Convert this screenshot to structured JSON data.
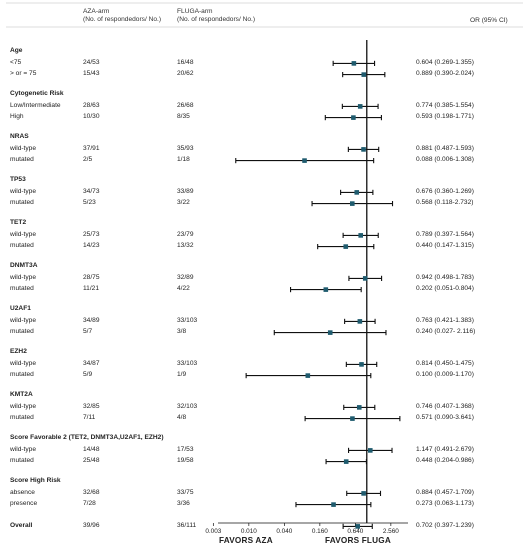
{
  "header": {
    "aza_line1": "AZA-arm",
    "aza_line2": "(No. of respondedors/ No.)",
    "fluga_line1": "FLUGA-arm",
    "fluga_line2": "(No. of respondedors/ No.)",
    "or_label": "OR (95% CI)"
  },
  "chart_data": {
    "type": "forest",
    "x_scale": "log2",
    "xlim": [
      0.003,
      5
    ],
    "reference_line": 1,
    "x_ticks": [
      "0.003",
      "0.010",
      "0.040",
      "0.160",
      "0.640",
      "2.560"
    ],
    "x_tick_values": [
      0.0025,
      0.01,
      0.04,
      0.16,
      0.64,
      2.56
    ],
    "favors_left": "FAVORS AZA",
    "favors_right": "FAVORS FLUGA",
    "groups": [
      {
        "title": "Age",
        "rows": [
          {
            "label": "<75",
            "aza": "24/53",
            "fluga": "16/48",
            "or_text": "0.604 (0.269-1.355)",
            "or": 0.604,
            "lo": 0.269,
            "hi": 1.355
          },
          {
            "label": "> or = 75",
            "aza": "15/43",
            "fluga": "20/62",
            "or_text": "0.889 (0.390-2.024)",
            "or": 0.889,
            "lo": 0.39,
            "hi": 2.024
          }
        ]
      },
      {
        "title": "Cytogenetic Risk",
        "rows": [
          {
            "label": "Low/Intermediate",
            "aza": "28/63",
            "fluga": "26/68",
            "or_text": "0.774 (0.385-1.554)",
            "or": 0.774,
            "lo": 0.385,
            "hi": 1.554
          },
          {
            "label": "High",
            "aza": "10/30",
            "fluga": "8/35",
            "or_text": "0.593 (0.198-1.771)",
            "or": 0.593,
            "lo": 0.198,
            "hi": 1.771
          }
        ]
      },
      {
        "title": "NRAS",
        "rows": [
          {
            "label": "wild-type",
            "aza": "37/91",
            "fluga": "35/93",
            "or_text": "0.881 (0.487-1.593)",
            "or": 0.881,
            "lo": 0.487,
            "hi": 1.593
          },
          {
            "label": "mutated",
            "aza": "2/5",
            "fluga": "1/18",
            "or_text": "0.088 (0.006-1.308)",
            "or": 0.088,
            "lo": 0.006,
            "hi": 1.308
          }
        ]
      },
      {
        "title": "TP53",
        "rows": [
          {
            "label": "wild-type",
            "aza": "34/73",
            "fluga": "33/89",
            "or_text": "0.676 (0.360-1.269)",
            "or": 0.676,
            "lo": 0.36,
            "hi": 1.269
          },
          {
            "label": "mutated",
            "aza": "5/23",
            "fluga": "3/22",
            "or_text": "0.568 (0.118-2.732)",
            "or": 0.568,
            "lo": 0.118,
            "hi": 2.732
          }
        ]
      },
      {
        "title": "TET2",
        "rows": [
          {
            "label": "wild-type",
            "aza": "25/73",
            "fluga": "23/79",
            "or_text": "0.789 (0.397-1.564)",
            "or": 0.789,
            "lo": 0.397,
            "hi": 1.564
          },
          {
            "label": "mutated",
            "aza": "14/23",
            "fluga": "13/32",
            "or_text": "0.440 (0.147-1.315)",
            "or": 0.44,
            "lo": 0.147,
            "hi": 1.315
          }
        ]
      },
      {
        "title": "DNMT3A",
        "rows": [
          {
            "label": "wild-type",
            "aza": "28/75",
            "fluga": "32/89",
            "or_text": "0.942 (0.498-1.783)",
            "or": 0.942,
            "lo": 0.498,
            "hi": 1.783
          },
          {
            "label": "mutated",
            "aza": "11/21",
            "fluga": "4/22",
            "or_text": "0.202 (0.051-0.804)",
            "or": 0.202,
            "lo": 0.051,
            "hi": 0.804
          }
        ]
      },
      {
        "title": "U2AF1",
        "rows": [
          {
            "label": "wild-type",
            "aza": "34/89",
            "fluga": "33/103",
            "or_text": "0.763 (0.421-1.383)",
            "or": 0.763,
            "lo": 0.421,
            "hi": 1.383
          },
          {
            "label": "mutated",
            "aza": "5/7",
            "fluga": "3/8",
            "or_text": "0.240 (0.027- 2.116)",
            "or": 0.24,
            "lo": 0.027,
            "hi": 2.116
          }
        ]
      },
      {
        "title": "EZH2",
        "rows": [
          {
            "label": "wild-type",
            "aza": "34/87",
            "fluga": "33/103",
            "or_text": "0.814 (0.450-1.475)",
            "or": 0.814,
            "lo": 0.45,
            "hi": 1.475
          },
          {
            "label": "mutated",
            "aza": "5/9",
            "fluga": "1/9",
            "or_text": "0.100 (0.009-1.170)",
            "or": 0.1,
            "lo": 0.009,
            "hi": 1.17
          }
        ]
      },
      {
        "title": "KMT2A",
        "rows": [
          {
            "label": "wild-type",
            "aza": "32/85",
            "fluga": "32/103",
            "or_text": "0.746 (0.407-1.368)",
            "or": 0.746,
            "lo": 0.407,
            "hi": 1.368
          },
          {
            "label": "mutated",
            "aza": "7/11",
            "fluga": "4/8",
            "or_text": "0.571 (0.090-3.641)",
            "or": 0.571,
            "lo": 0.09,
            "hi": 3.641
          }
        ]
      },
      {
        "title": "Score Favorable 2 (TET2, DNMT3A,U2AF1, EZH2)",
        "rows": [
          {
            "label": "wild-type",
            "aza": "14/48",
            "fluga": "17/53",
            "or_text": "1.147 (0.491-2.679)",
            "or": 1.147,
            "lo": 0.491,
            "hi": 2.679
          },
          {
            "label": "mutated",
            "aza": "25/48",
            "fluga": "19/58",
            "or_text": "0.448 (0.204-0.986)",
            "or": 0.448,
            "lo": 0.204,
            "hi": 0.986
          }
        ]
      },
      {
        "title": "Score High Risk",
        "rows": [
          {
            "label": "absence",
            "aza": "32/68",
            "fluga": "33/75",
            "or_text": "0.884 (0.457-1.709)",
            "or": 0.884,
            "lo": 0.457,
            "hi": 1.709
          },
          {
            "label": "presence",
            "aza": "7/28",
            "fluga": "3/36",
            "or_text": "0.273 (0.063-1.173)",
            "or": 0.273,
            "lo": 0.063,
            "hi": 1.173
          }
        ]
      }
    ],
    "overall": {
      "label": "Overall",
      "aza": "39/96",
      "fluga": "36/111",
      "or_text": "0.702 (0.397-1.239)",
      "or": 0.702,
      "lo": 0.397,
      "hi": 1.239
    },
    "colors": {
      "marker": "#1f5b6e",
      "line": "#111111"
    }
  }
}
